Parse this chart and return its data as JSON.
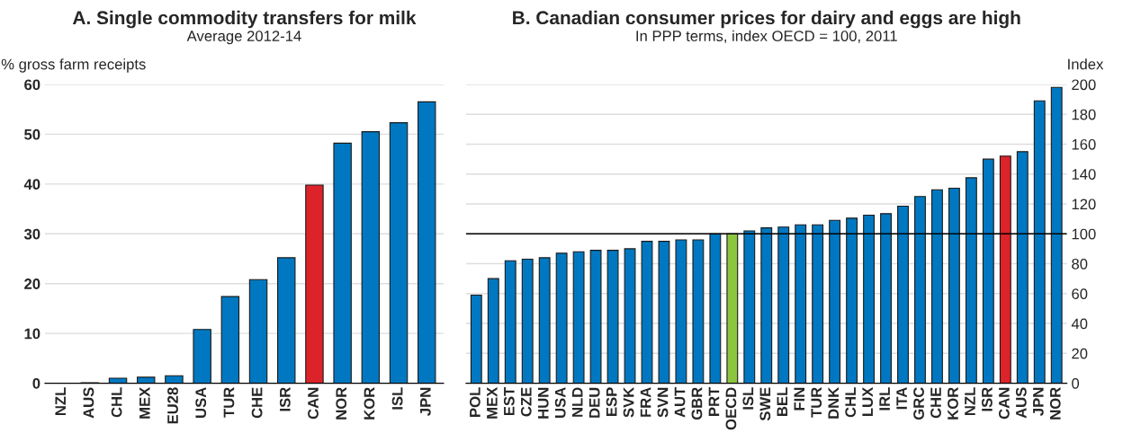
{
  "chart_data": [
    {
      "type": "bar",
      "title": "A. Single commodity transfers for milk",
      "subtitle": "Average 2012-14",
      "ylabel": "% gross farm receipts",
      "categories": [
        "NZL",
        "AUS",
        "CHL",
        "MEX",
        "EU28",
        "USA",
        "TUR",
        "CHE",
        "ISR",
        "CAN",
        "NOR",
        "KOR",
        "ISL",
        "JPN"
      ],
      "values": [
        0,
        0.1,
        1.0,
        1.2,
        1.5,
        10.8,
        17.4,
        20.8,
        25.2,
        39.8,
        48.2,
        50.5,
        52.3,
        56.5
      ],
      "colors": [
        "#0078c1",
        "#0078c1",
        "#0078c1",
        "#0078c1",
        "#0078c1",
        "#0078c1",
        "#0078c1",
        "#0078c1",
        "#0078c1",
        "#dc2329",
        "#0078c1",
        "#0078c1",
        "#0078c1",
        "#0078c1"
      ],
      "ylim": [
        0,
        60
      ],
      "yticks": [
        0,
        10,
        20,
        30,
        40,
        50,
        60
      ],
      "grid": "y"
    },
    {
      "type": "bar",
      "title": "B. Canadian consumer prices for dairy and eggs are high",
      "subtitle": "In PPP terms, index OECD = 100, 2011",
      "y2label": "Index",
      "categories": [
        "POL",
        "MEX",
        "EST",
        "CZE",
        "HUN",
        "USA",
        "NLD",
        "DEU",
        "ESP",
        "SVK",
        "FRA",
        "SVN",
        "AUT",
        "GBR",
        "PRT",
        "OECD",
        "ISL",
        "SWE",
        "BEL",
        "FIN",
        "TUR",
        "DNK",
        "CHL",
        "LUX",
        "IRL",
        "ITA",
        "GRC",
        "CHE",
        "KOR",
        "NZL",
        "ISR",
        "CAN",
        "AUS",
        "JPN",
        "NOR"
      ],
      "series": [
        {
          "axis": "y2",
          "values": [
            59,
            70,
            82,
            83,
            84,
            87,
            88,
            89,
            89,
            90,
            95,
            95,
            96,
            96,
            100,
            100,
            102,
            104,
            104.5,
            106,
            106,
            109,
            110.5,
            112.5,
            113.5,
            118.5,
            125,
            129.5,
            130.5,
            137.5,
            150,
            152,
            155,
            189,
            198
          ],
          "colors": [
            "#0078c1",
            "#0078c1",
            "#0078c1",
            "#0078c1",
            "#0078c1",
            "#0078c1",
            "#0078c1",
            "#0078c1",
            "#0078c1",
            "#0078c1",
            "#0078c1",
            "#0078c1",
            "#0078c1",
            "#0078c1",
            "#0078c1",
            "#8cc63f",
            "#0078c1",
            "#0078c1",
            "#0078c1",
            "#0078c1",
            "#0078c1",
            "#0078c1",
            "#0078c1",
            "#0078c1",
            "#0078c1",
            "#0078c1",
            "#0078c1",
            "#0078c1",
            "#0078c1",
            "#0078c1",
            "#0078c1",
            "#dc2329",
            "#0078c1",
            "#0078c1",
            "#0078c1"
          ]
        }
      ],
      "y2lim": [
        0,
        200
      ],
      "y2ticks": [
        0,
        20,
        40,
        60,
        80,
        100,
        120,
        140,
        160,
        180,
        200
      ],
      "grid": "y",
      "ref_lines": [
        {
          "axis": "y2",
          "value": 100,
          "color": "#000000"
        }
      ]
    }
  ]
}
